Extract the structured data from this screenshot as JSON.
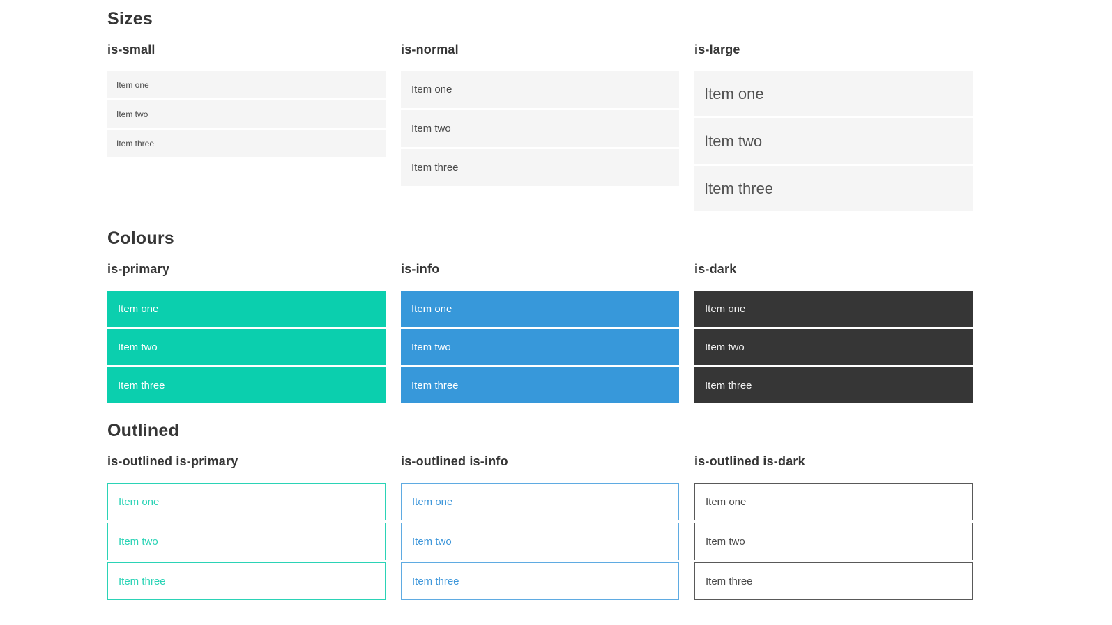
{
  "colors": {
    "heading": "#363636",
    "item_bg": "#f5f5f5",
    "item_text": "#4a4a4a",
    "primary": "#0bcfae",
    "info": "#3798da",
    "dark": "#363636",
    "outlined_primary": "#2bd3b6",
    "outlined_info_border": "#5fabe2",
    "outlined_info_text": "#3f97da",
    "outlined_dark_border": "#595959",
    "outlined_dark_text": "#4a4a4a"
  },
  "sections": [
    {
      "title": "Sizes",
      "groups": [
        {
          "label": "is-small",
          "items": [
            "Item one",
            "Item two",
            "Item three"
          ]
        },
        {
          "label": "is-normal",
          "items": [
            "Item one",
            "Item two",
            "Item three"
          ]
        },
        {
          "label": "is-large",
          "items": [
            "Item one",
            "Item two",
            "Item three"
          ]
        }
      ]
    },
    {
      "title": "Colours",
      "groups": [
        {
          "label": "is-primary",
          "items": [
            "Item one",
            "Item two",
            "Item three"
          ]
        },
        {
          "label": "is-info",
          "items": [
            "Item one",
            "Item two",
            "Item three"
          ]
        },
        {
          "label": "is-dark",
          "items": [
            "Item one",
            "Item two",
            "Item three"
          ]
        }
      ]
    },
    {
      "title": "Outlined",
      "groups": [
        {
          "label": "is-outlined is-primary",
          "items": [
            "Item one",
            "Item two",
            "Item three"
          ]
        },
        {
          "label": "is-outlined is-info",
          "items": [
            "Item one",
            "Item two",
            "Item three"
          ]
        },
        {
          "label": "is-outlined is-dark",
          "items": [
            "Item one",
            "Item two",
            "Item three"
          ]
        }
      ]
    }
  ]
}
